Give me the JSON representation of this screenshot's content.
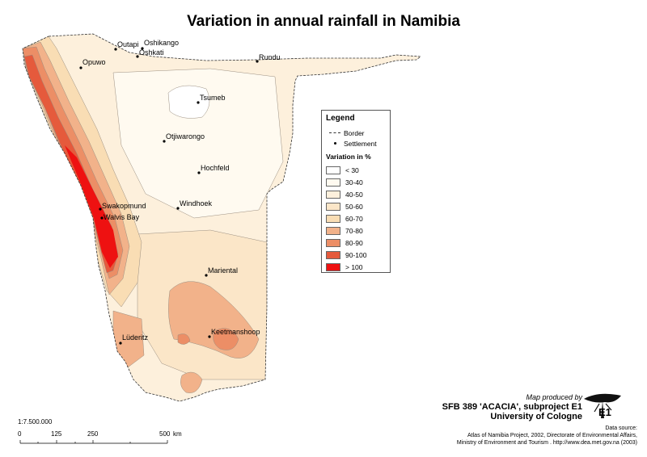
{
  "title": "Variation in annual rainfall in Namibia",
  "legend": {
    "title": "Legend",
    "border_label": "Border",
    "settlement_label": "Settlement",
    "subtitle": "Variation in %",
    "classes": [
      {
        "label": "< 30",
        "color": "#ffffff"
      },
      {
        "label": "30-40",
        "color": "#fffaf0"
      },
      {
        "label": "40-50",
        "color": "#fdf0dc"
      },
      {
        "label": "50-60",
        "color": "#fbe6c8"
      },
      {
        "label": "60-70",
        "color": "#f9ddb4"
      },
      {
        "label": "70-80",
        "color": "#f2b28a"
      },
      {
        "label": "80-90",
        "color": "#ec8e66"
      },
      {
        "label": "90-100",
        "color": "#e55a3c"
      },
      {
        "label": "> 100",
        "color": "#ee1111"
      }
    ]
  },
  "towns": [
    "Outapi",
    "Oshikango",
    "Oshkati",
    "Rundu",
    "Opuwo",
    "Tsumeb",
    "Otjiwarongo",
    "Hochfeld",
    "Windhoek",
    "Swakopmund",
    "Walvis Bay",
    "Mariental",
    "Lüderitz",
    "Keetmanshoop"
  ],
  "credit": {
    "produced_by": "Map produced by",
    "line1": "SFB 389 'ACACIA', subproject E1",
    "line2": "University of Cologne",
    "logo_text": "E1"
  },
  "source": {
    "line1": "Data source:",
    "line2": "Atlas of Namibia Project, 2002, Directorate of Environmental Affairs,",
    "line3": "Ministry of Environment and Tourism . http://www.dea.met.gov.na (2003)"
  },
  "scale": {
    "ratio": "1:7.500.000",
    "ticks": [
      "0",
      "125",
      "250",
      "500"
    ],
    "unit": "km"
  }
}
